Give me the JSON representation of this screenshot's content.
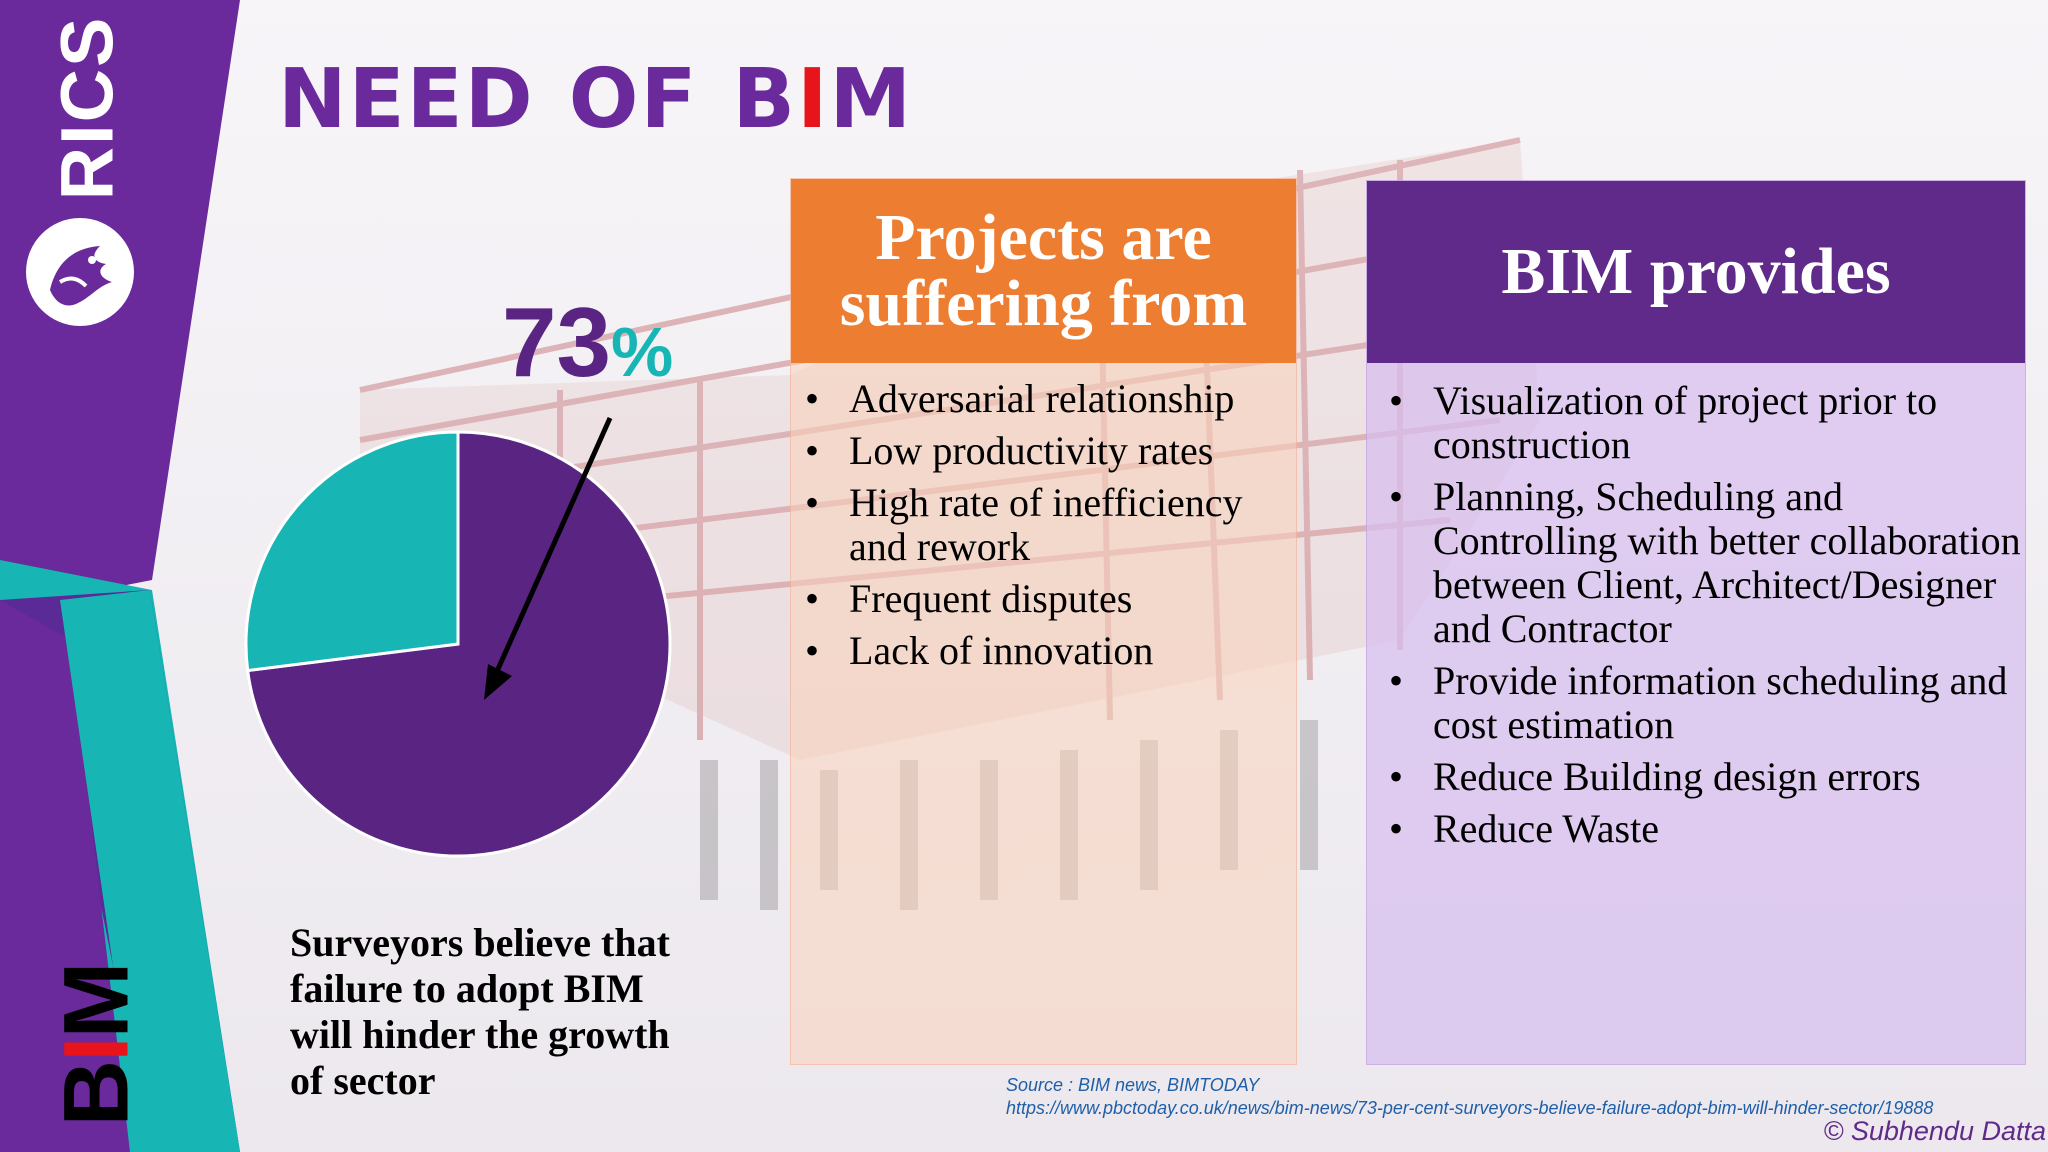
{
  "brand": {
    "logo_text": "RICS",
    "logo_icon": "lion-emblem-icon",
    "side_label_parts": [
      "B",
      "I",
      "M"
    ],
    "colors": {
      "purple": "#6a2a9c",
      "teal": "#17b6b4",
      "red": "#e8141c"
    }
  },
  "title": {
    "part1": "NEED",
    "part2": "OF",
    "b": "B",
    "i": "I",
    "m": "M"
  },
  "pie": {
    "percent_number": "73",
    "percent_symbol": "%",
    "caption": "Surveyors believe that failure to adopt BIM will hinder the growth of sector"
  },
  "chart_data": {
    "type": "pie",
    "slices": [
      {
        "value": 73,
        "color": "#5a2582"
      },
      {
        "value": 27,
        "color": "#17b6b4"
      }
    ]
  },
  "left_panel": {
    "header": "Projects are suffering from",
    "items": [
      "Adversarial relationship",
      "Low productivity rates",
      "High rate of inefficiency and rework",
      "Frequent disputes",
      "Lack of innovation"
    ]
  },
  "right_panel": {
    "header": "BIM provides",
    "items": [
      "Visualization of project prior to construction",
      "Planning, Scheduling and Controlling with better collaboration between Client, Architect/Designer and Contractor",
      "Provide information scheduling and cost estimation",
      "Reduce Building design errors",
      "Reduce Waste"
    ]
  },
  "source": {
    "line1": "Source : BIM news, BIMTODAY",
    "line2": "https://www.pbctoday.co.uk/news/bim-news/73-per-cent-surveyors-believe-failure-adopt-bim-will-hinder-sector/19888"
  },
  "credit": "© Subhendu Datta"
}
